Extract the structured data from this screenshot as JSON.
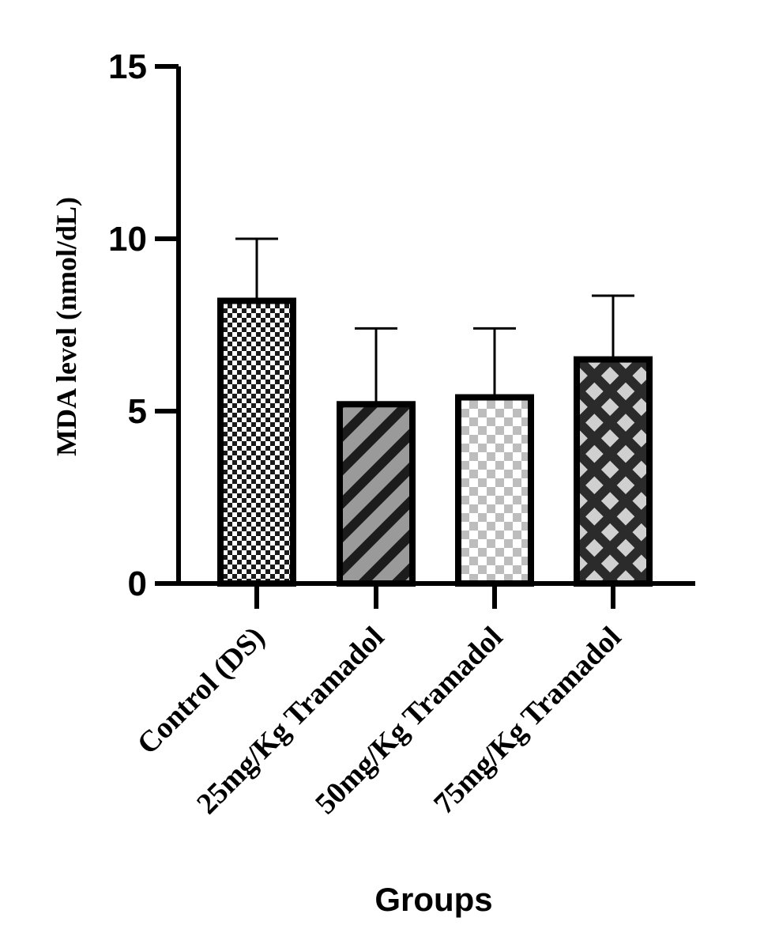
{
  "chart_data": {
    "type": "bar",
    "title": "",
    "xlabel": "Groups",
    "ylabel": "MDA level (nmol/dL)",
    "ylim": [
      0,
      15
    ],
    "yticks": [
      "0",
      "5",
      "10",
      "15"
    ],
    "categories": [
      "Control (DS)",
      "25mg/Kg Tramadol",
      "50mg/Kg Tramadol",
      "75mg/Kg Tramadol"
    ],
    "values": [
      8.2,
      5.2,
      5.4,
      6.5
    ],
    "error_upper": [
      1.8,
      2.2,
      2.0,
      1.85
    ],
    "patterns": [
      "fine-checker",
      "diagonal-stripes",
      "light-checker",
      "diamond-crosshatch"
    ],
    "colors": {
      "axis": "#000000",
      "dark_fill": "#2b2b2b",
      "mid_gray": "#9a9a9a",
      "light_gray": "#bdbdbd"
    },
    "grid": false,
    "legend": "none"
  }
}
